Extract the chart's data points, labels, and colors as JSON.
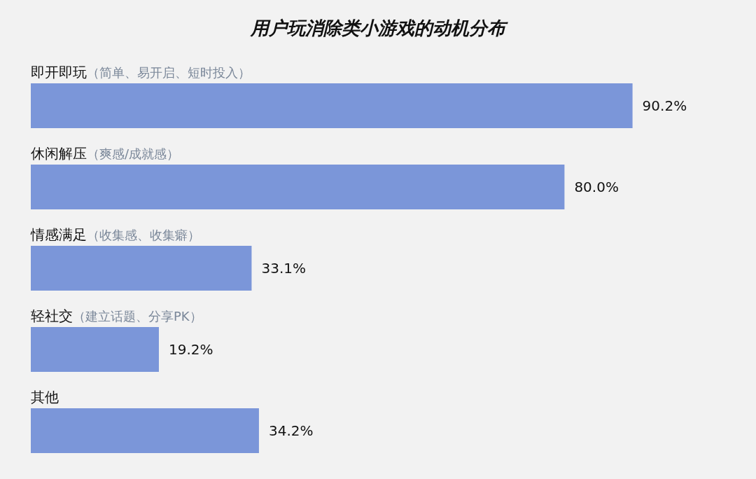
{
  "chart_data": {
    "type": "bar",
    "orientation": "horizontal",
    "title": "用户玩消除类小游戏的动机分布",
    "categories": [
      "即开即玩（简单、易开启、短时投入）",
      "休闲解压（爽感/成就感）",
      "情感满足（收集感、收集癖）",
      "轻社交（建立话题、分享PK）",
      "其他"
    ],
    "values": [
      90.2,
      80.0,
      33.1,
      19.2,
      34.2
    ],
    "value_labels": [
      "90.2%",
      "80.0%",
      "33.1%",
      "19.2%",
      "34.2%"
    ],
    "color": "#7b96d9"
  }
}
